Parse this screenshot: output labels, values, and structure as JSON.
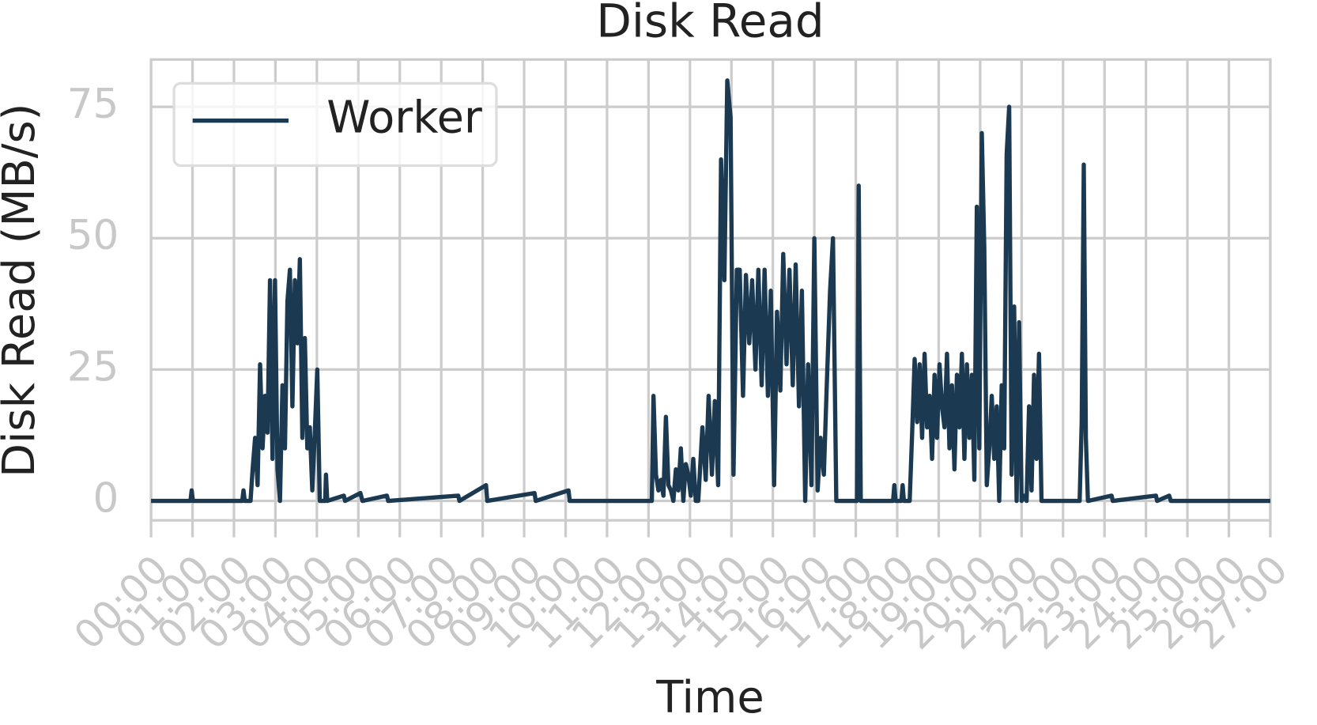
{
  "chart_data": {
    "type": "line",
    "title": "Disk Read",
    "xlabel": "Time",
    "ylabel": "Disk Read (MB/s)",
    "x": [
      0,
      0.95,
      0.98,
      1.01,
      2.2,
      2.23,
      2.26,
      2.4,
      2.45,
      2.51,
      2.57,
      2.63,
      2.69,
      2.75,
      2.81,
      2.87,
      2.93,
      2.99,
      3.05,
      3.11,
      3.17,
      3.23,
      3.29,
      3.35,
      3.41,
      3.47,
      3.53,
      3.59,
      3.65,
      3.71,
      3.77,
      3.83,
      3.89,
      3.95,
      4.01,
      4.07,
      4.2,
      4.22,
      4.25,
      4.65,
      4.68,
      5.05,
      5.1,
      5.69,
      5.72,
      7.41,
      7.44,
      8.08,
      8.11,
      9.25,
      9.28,
      10.07,
      10.1,
      12.08,
      12.12,
      12.18,
      12.24,
      12.3,
      12.36,
      12.42,
      12.48,
      12.54,
      12.6,
      12.66,
      12.72,
      12.78,
      12.84,
      12.9,
      12.96,
      13.02,
      13.08,
      13.14,
      13.2,
      13.3,
      13.38,
      13.45,
      13.53,
      13.6,
      13.68,
      13.75,
      13.83,
      13.9,
      13.98,
      14.05,
      14.13,
      14.2,
      14.28,
      14.35,
      14.43,
      14.5,
      14.58,
      14.65,
      14.73,
      14.8,
      14.88,
      14.95,
      15.03,
      15.1,
      15.18,
      15.25,
      15.33,
      15.4,
      15.48,
      15.55,
      15.63,
      15.7,
      15.78,
      15.85,
      15.93,
      16.0,
      16.08,
      16.15,
      16.23,
      16.3,
      16.38,
      16.45,
      16.53,
      16.6,
      17.03,
      17.07,
      17.12,
      17.9,
      17.93,
      17.96,
      18.1,
      18.13,
      18.16,
      18.3,
      18.36,
      18.42,
      18.48,
      18.54,
      18.6,
      18.66,
      18.72,
      18.78,
      18.84,
      18.9,
      18.96,
      19.02,
      19.08,
      19.14,
      19.2,
      19.26,
      19.32,
      19.38,
      19.44,
      19.5,
      19.56,
      19.62,
      19.68,
      19.74,
      19.8,
      19.86,
      19.92,
      19.98,
      20.04,
      20.1,
      20.16,
      20.22,
      20.28,
      20.34,
      20.4,
      20.46,
      20.52,
      20.58,
      20.64,
      20.7,
      20.76,
      20.82,
      20.88,
      20.94,
      21.0,
      21.06,
      21.12,
      21.18,
      21.24,
      21.3,
      21.36,
      21.42,
      21.48,
      21.54,
      22.4,
      22.45,
      22.5,
      22.55,
      22.6,
      23.17,
      23.2,
      24.24,
      24.27,
      24.56,
      24.6,
      27
    ],
    "series": [
      {
        "name": "Worker",
        "color": "#1b3a52",
        "values": [
          0,
          0,
          2,
          0,
          0,
          2,
          0,
          0,
          6,
          12,
          3,
          26,
          10,
          20,
          13,
          42,
          8,
          42,
          6,
          0,
          22,
          10,
          38,
          44,
          18,
          42,
          30,
          46,
          12,
          31,
          10,
          14,
          2,
          13,
          25,
          0,
          0,
          5,
          0,
          1,
          0,
          1.5,
          0,
          1,
          0,
          1,
          0,
          3,
          0,
          1.5,
          0,
          2,
          0,
          0,
          20,
          5,
          2,
          4,
          1,
          16,
          3,
          2,
          0,
          6,
          2,
          10,
          0,
          7,
          5,
          1,
          8,
          0,
          0,
          14,
          4,
          20,
          5,
          19,
          3,
          65,
          42,
          80,
          73,
          5,
          44,
          44,
          20,
          43,
          30,
          42,
          25,
          44,
          22,
          44,
          20,
          40,
          3,
          36,
          21,
          47,
          26,
          44,
          22,
          45,
          18,
          40,
          0,
          26,
          3,
          50,
          2,
          12,
          5,
          22,
          40,
          50,
          0,
          0,
          0,
          60,
          0,
          0,
          3,
          0,
          0,
          3,
          0,
          0,
          13,
          27,
          15,
          26,
          12,
          28,
          14,
          20,
          8,
          24,
          12,
          26,
          18,
          14,
          28,
          10,
          22,
          6,
          24,
          14,
          28,
          8,
          26,
          12,
          24,
          4,
          56,
          10,
          70,
          48,
          3,
          10,
          20,
          8,
          18,
          0,
          22,
          10,
          66,
          75,
          5,
          37,
          0,
          34,
          0,
          1,
          0,
          18,
          2,
          24,
          8,
          28,
          0,
          0,
          0,
          15,
          64,
          12,
          0,
          1,
          0,
          1,
          0,
          1,
          0,
          0
        ]
      }
    ],
    "xlim": [
      0,
      27
    ],
    "ylim": [
      -3.7,
      84
    ],
    "xticks": [
      {
        "value": 0,
        "label": "00:00"
      },
      {
        "value": 1,
        "label": "01:00"
      },
      {
        "value": 2,
        "label": "02:00"
      },
      {
        "value": 3,
        "label": "03:00"
      },
      {
        "value": 4,
        "label": "04:00"
      },
      {
        "value": 5,
        "label": "05:00"
      },
      {
        "value": 6,
        "label": "06:00"
      },
      {
        "value": 7,
        "label": "07:00"
      },
      {
        "value": 8,
        "label": "08:00"
      },
      {
        "value": 9,
        "label": "09:00"
      },
      {
        "value": 10,
        "label": "10:00"
      },
      {
        "value": 11,
        "label": "11:00"
      },
      {
        "value": 12,
        "label": "12:00"
      },
      {
        "value": 13,
        "label": "13:00"
      },
      {
        "value": 14,
        "label": "14:00"
      },
      {
        "value": 15,
        "label": "15:00"
      },
      {
        "value": 16,
        "label": "16:00"
      },
      {
        "value": 17,
        "label": "17:00"
      },
      {
        "value": 18,
        "label": "18:00"
      },
      {
        "value": 19,
        "label": "19:00"
      },
      {
        "value": 20,
        "label": "20:00"
      },
      {
        "value": 21,
        "label": "21:00"
      },
      {
        "value": 22,
        "label": "22:00"
      },
      {
        "value": 23,
        "label": "23:00"
      },
      {
        "value": 24,
        "label": "24:00"
      },
      {
        "value": 25,
        "label": "25:00"
      },
      {
        "value": 26,
        "label": "26:00"
      },
      {
        "value": 27,
        "label": "27:00"
      }
    ],
    "yticks": [
      0,
      25,
      50,
      75
    ],
    "grid": true,
    "legend": "upper left"
  }
}
